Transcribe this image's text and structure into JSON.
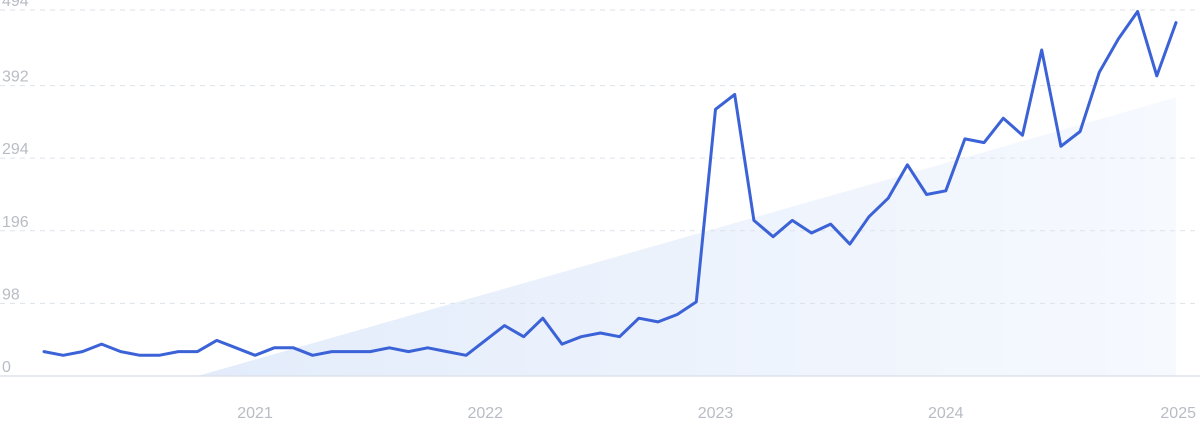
{
  "chart_data": {
    "type": "line",
    "title": "",
    "xlabel": "",
    "ylabel": "",
    "x_range": [
      "2020-02",
      "2025-01"
    ],
    "ylim": [
      0,
      494
    ],
    "y_ticks": [
      "0",
      "98",
      "196",
      "294",
      "392",
      "494"
    ],
    "x_ticks": [
      {
        "label": "2021",
        "date": "2021-01"
      },
      {
        "label": "2022",
        "date": "2022-01"
      },
      {
        "label": "2023",
        "date": "2023-01"
      },
      {
        "label": "2024",
        "date": "2024-01"
      },
      {
        "label": "2025",
        "date": "2025-01"
      }
    ],
    "grid": true,
    "legend": "none",
    "series": [
      {
        "color": "#3b62d6",
        "points": [
          {
            "x": "2020-02",
            "y": 33
          },
          {
            "x": "2020-03",
            "y": 28
          },
          {
            "x": "2020-04",
            "y": 33
          },
          {
            "x": "2020-05",
            "y": 43
          },
          {
            "x": "2020-06",
            "y": 33
          },
          {
            "x": "2020-07",
            "y": 28
          },
          {
            "x": "2020-08",
            "y": 28
          },
          {
            "x": "2020-09",
            "y": 33
          },
          {
            "x": "2020-10",
            "y": 33
          },
          {
            "x": "2020-11",
            "y": 48
          },
          {
            "x": "2020-12",
            "y": 38
          },
          {
            "x": "2021-01",
            "y": 28
          },
          {
            "x": "2021-02",
            "y": 38
          },
          {
            "x": "2021-03",
            "y": 38
          },
          {
            "x": "2021-04",
            "y": 28
          },
          {
            "x": "2021-05",
            "y": 33
          },
          {
            "x": "2021-06",
            "y": 33
          },
          {
            "x": "2021-07",
            "y": 33
          },
          {
            "x": "2021-08",
            "y": 38
          },
          {
            "x": "2021-09",
            "y": 33
          },
          {
            "x": "2021-10",
            "y": 38
          },
          {
            "x": "2021-11",
            "y": 33
          },
          {
            "x": "2021-12",
            "y": 28
          },
          {
            "x": "2022-01",
            "y": 48
          },
          {
            "x": "2022-02",
            "y": 68
          },
          {
            "x": "2022-03",
            "y": 53
          },
          {
            "x": "2022-04",
            "y": 78
          },
          {
            "x": "2022-05",
            "y": 43
          },
          {
            "x": "2022-06",
            "y": 53
          },
          {
            "x": "2022-07",
            "y": 58
          },
          {
            "x": "2022-08",
            "y": 53
          },
          {
            "x": "2022-09",
            "y": 78
          },
          {
            "x": "2022-10",
            "y": 73
          },
          {
            "x": "2022-11",
            "y": 83
          },
          {
            "x": "2022-12",
            "y": 100
          },
          {
            "x": "2023-01",
            "y": 360
          },
          {
            "x": "2023-02",
            "y": 380
          },
          {
            "x": "2023-03",
            "y": 210
          },
          {
            "x": "2023-04",
            "y": 188
          },
          {
            "x": "2023-05",
            "y": 210
          },
          {
            "x": "2023-06",
            "y": 193
          },
          {
            "x": "2023-07",
            "y": 205
          },
          {
            "x": "2023-08",
            "y": 178
          },
          {
            "x": "2023-09",
            "y": 215
          },
          {
            "x": "2023-10",
            "y": 240
          },
          {
            "x": "2023-11",
            "y": 285
          },
          {
            "x": "2023-12",
            "y": 245
          },
          {
            "x": "2024-01",
            "y": 250
          },
          {
            "x": "2024-02",
            "y": 320
          },
          {
            "x": "2024-03",
            "y": 315
          },
          {
            "x": "2024-04",
            "y": 348
          },
          {
            "x": "2024-05",
            "y": 325
          },
          {
            "x": "2024-06",
            "y": 440
          },
          {
            "x": "2024-07",
            "y": 310
          },
          {
            "x": "2024-08",
            "y": 330
          },
          {
            "x": "2024-09",
            "y": 410
          },
          {
            "x": "2024-10",
            "y": 455
          },
          {
            "x": "2024-11",
            "y": 492
          },
          {
            "x": "2024-12",
            "y": 405
          },
          {
            "x": "2025-01",
            "y": 477
          }
        ]
      }
    ],
    "trend": {
      "start": {
        "x": "2020-10",
        "y": 0
      },
      "end": {
        "x": "2025-01",
        "y": 376
      },
      "color": "#e8f0fc"
    }
  }
}
